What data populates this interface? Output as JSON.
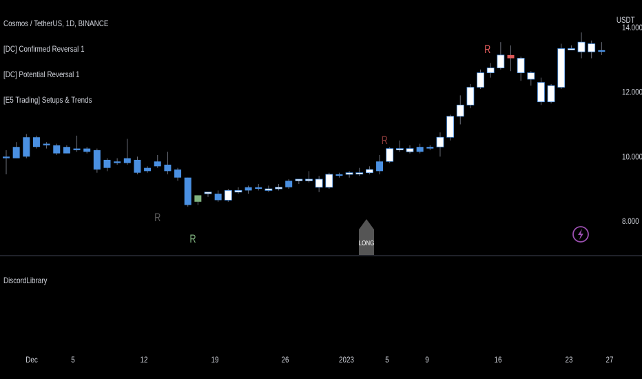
{
  "header": {
    "title": "Cosmos / TetherUS, 1D, BINANCE",
    "indicators": [
      "[DC] Confirmed Reversal 1",
      "[DC] Potential Reversal 1",
      "[E5 Trading] Setups & Trends"
    ],
    "lower_pane_label": "DiscordLibrary",
    "unit": "USDT"
  },
  "colors": {
    "background": "#000000",
    "bull": "#ffffff",
    "bear": "#4a90e2",
    "signal_green": "#7fb27f",
    "signal_red_dark": "#8b3a3a",
    "signal_red": "#e05a5a",
    "gray_r": "#5a5a5a",
    "long_label": "#555555",
    "lightning": "#9b4fb0"
  },
  "chart_data": {
    "type": "candlestick",
    "x_tick_labels": [
      "Dec",
      "5",
      "12",
      "19",
      "26",
      "2023",
      "5",
      "9",
      "16",
      "23",
      "27"
    ],
    "y_tick_labels": [
      "14.000",
      "12.000",
      "10.000",
      "8.000"
    ],
    "y_ticks": [
      14,
      12,
      10,
      8
    ],
    "ylim": [
      6.95,
      14.75
    ],
    "candles": [
      {
        "o": 9.95,
        "h": 10.2,
        "l": 9.45,
        "c": 10.0,
        "color": "bear"
      },
      {
        "o": 10.3,
        "h": 10.45,
        "l": 9.95,
        "c": 9.95,
        "color": "bear"
      },
      {
        "o": 10.0,
        "h": 10.7,
        "l": 9.95,
        "c": 10.6,
        "color": "bear"
      },
      {
        "o": 10.6,
        "h": 10.65,
        "l": 10.25,
        "c": 10.3,
        "color": "bear"
      },
      {
        "o": 10.35,
        "h": 10.45,
        "l": 10.25,
        "c": 10.4,
        "color": "bear"
      },
      {
        "o": 10.35,
        "h": 10.4,
        "l": 10.05,
        "c": 10.1,
        "color": "bear"
      },
      {
        "o": 10.3,
        "h": 10.35,
        "l": 10.1,
        "c": 10.1,
        "color": "bear"
      },
      {
        "o": 10.2,
        "h": 10.65,
        "l": 10.15,
        "c": 10.25,
        "color": "bear"
      },
      {
        "o": 10.25,
        "h": 10.3,
        "l": 10.1,
        "c": 10.15,
        "color": "bear"
      },
      {
        "o": 10.2,
        "h": 10.25,
        "l": 9.5,
        "c": 9.6,
        "color": "bear"
      },
      {
        "o": 9.9,
        "h": 9.95,
        "l": 9.55,
        "c": 9.65,
        "color": "bear"
      },
      {
        "o": 9.85,
        "h": 9.95,
        "l": 9.75,
        "c": 9.8,
        "color": "bear"
      },
      {
        "o": 9.95,
        "h": 10.55,
        "l": 9.75,
        "c": 9.8,
        "color": "bear"
      },
      {
        "o": 9.9,
        "h": 10.0,
        "l": 9.45,
        "c": 9.5,
        "color": "bear"
      },
      {
        "o": 9.65,
        "h": 9.7,
        "l": 9.5,
        "c": 9.55,
        "color": "bear"
      },
      {
        "o": 9.85,
        "h": 10.05,
        "l": 9.65,
        "c": 9.7,
        "color": "bear"
      },
      {
        "o": 9.75,
        "h": 10.15,
        "l": 9.45,
        "c": 9.55,
        "color": "bear"
      },
      {
        "o": 9.6,
        "h": 9.65,
        "l": 9.25,
        "c": 9.35,
        "color": "bear"
      },
      {
        "o": 9.35,
        "h": 9.35,
        "l": 8.45,
        "c": 8.5,
        "color": "bear"
      },
      {
        "o": 8.6,
        "h": 8.8,
        "l": 8.5,
        "c": 8.8,
        "color": "green"
      },
      {
        "o": 8.85,
        "h": 8.9,
        "l": 8.75,
        "c": 8.9,
        "color": "bull"
      },
      {
        "o": 8.85,
        "h": 8.95,
        "l": 8.6,
        "c": 8.65,
        "color": "bear"
      },
      {
        "o": 8.65,
        "h": 9.0,
        "l": 8.6,
        "c": 8.95,
        "color": "bull"
      },
      {
        "o": 8.9,
        "h": 9.05,
        "l": 8.85,
        "c": 8.95,
        "color": "bull"
      },
      {
        "o": 8.95,
        "h": 9.1,
        "l": 8.85,
        "c": 9.05,
        "color": "bear"
      },
      {
        "o": 9.05,
        "h": 9.15,
        "l": 8.95,
        "c": 9.0,
        "color": "bear"
      },
      {
        "o": 9.0,
        "h": 9.1,
        "l": 8.9,
        "c": 8.95,
        "color": "bull"
      },
      {
        "o": 9.0,
        "h": 9.15,
        "l": 8.95,
        "c": 9.05,
        "color": "bull"
      },
      {
        "o": 9.05,
        "h": 9.3,
        "l": 9.0,
        "c": 9.25,
        "color": "bear"
      },
      {
        "o": 9.25,
        "h": 9.3,
        "l": 9.15,
        "c": 9.3,
        "color": "bull"
      },
      {
        "o": 9.3,
        "h": 9.55,
        "l": 9.2,
        "c": 9.25,
        "color": "bull"
      },
      {
        "o": 9.3,
        "h": 9.4,
        "l": 8.9,
        "c": 9.05,
        "color": "bull"
      },
      {
        "o": 9.05,
        "h": 9.5,
        "l": 9.0,
        "c": 9.45,
        "color": "bull"
      },
      {
        "o": 9.45,
        "h": 9.5,
        "l": 9.35,
        "c": 9.45,
        "color": "bear"
      },
      {
        "o": 9.45,
        "h": 9.55,
        "l": 9.35,
        "c": 9.5,
        "color": "bull"
      },
      {
        "o": 9.5,
        "h": 9.65,
        "l": 9.4,
        "c": 9.5,
        "color": "bull"
      },
      {
        "o": 9.5,
        "h": 9.7,
        "l": 9.45,
        "c": 9.6,
        "color": "bull"
      },
      {
        "o": 9.55,
        "h": 10.05,
        "l": 9.45,
        "c": 9.85,
        "color": "bear"
      },
      {
        "o": 9.85,
        "h": 10.3,
        "l": 9.8,
        "c": 10.25,
        "color": "bull"
      },
      {
        "o": 10.25,
        "h": 10.5,
        "l": 10.15,
        "c": 10.25,
        "color": "bull"
      },
      {
        "o": 10.25,
        "h": 10.35,
        "l": 10.1,
        "c": 10.15,
        "color": "bull"
      },
      {
        "o": 10.15,
        "h": 10.4,
        "l": 10.1,
        "c": 10.3,
        "color": "bear"
      },
      {
        "o": 10.25,
        "h": 10.35,
        "l": 10.2,
        "c": 10.3,
        "color": "bear"
      },
      {
        "o": 10.3,
        "h": 10.75,
        "l": 10.0,
        "c": 10.6,
        "color": "bull"
      },
      {
        "o": 10.6,
        "h": 11.3,
        "l": 10.5,
        "c": 11.25,
        "color": "bull"
      },
      {
        "o": 11.25,
        "h": 11.9,
        "l": 11.0,
        "c": 11.6,
        "color": "bull"
      },
      {
        "o": 11.6,
        "h": 12.25,
        "l": 11.5,
        "c": 12.15,
        "color": "bull"
      },
      {
        "o": 12.15,
        "h": 12.7,
        "l": 12.1,
        "c": 12.6,
        "color": "bull"
      },
      {
        "o": 12.6,
        "h": 12.9,
        "l": 12.45,
        "c": 12.75,
        "color": "bull"
      },
      {
        "o": 12.75,
        "h": 13.55,
        "l": 12.7,
        "c": 13.15,
        "color": "bull"
      },
      {
        "o": 13.15,
        "h": 13.45,
        "l": 12.65,
        "c": 13.05,
        "color": "red"
      },
      {
        "o": 13.05,
        "h": 13.1,
        "l": 12.35,
        "c": 12.6,
        "color": "bull"
      },
      {
        "o": 12.6,
        "h": 12.65,
        "l": 12.2,
        "c": 12.4,
        "color": "bull"
      },
      {
        "o": 12.3,
        "h": 12.45,
        "l": 11.6,
        "c": 11.7,
        "color": "bull"
      },
      {
        "o": 11.7,
        "h": 12.25,
        "l": 11.65,
        "c": 12.2,
        "color": "bull"
      },
      {
        "o": 12.15,
        "h": 13.5,
        "l": 12.1,
        "c": 13.35,
        "color": "bull"
      },
      {
        "o": 13.35,
        "h": 13.45,
        "l": 13.3,
        "c": 13.35,
        "color": "bull"
      },
      {
        "o": 13.25,
        "h": 13.85,
        "l": 13.05,
        "c": 13.55,
        "color": "bull"
      },
      {
        "o": 13.5,
        "h": 13.6,
        "l": 13.05,
        "c": 13.25,
        "color": "bull"
      },
      {
        "o": 13.3,
        "h": 13.55,
        "l": 13.15,
        "c": 13.25,
        "color": "bear"
      }
    ]
  },
  "annotations": {
    "r_label": "R",
    "long_label": "LONG"
  }
}
